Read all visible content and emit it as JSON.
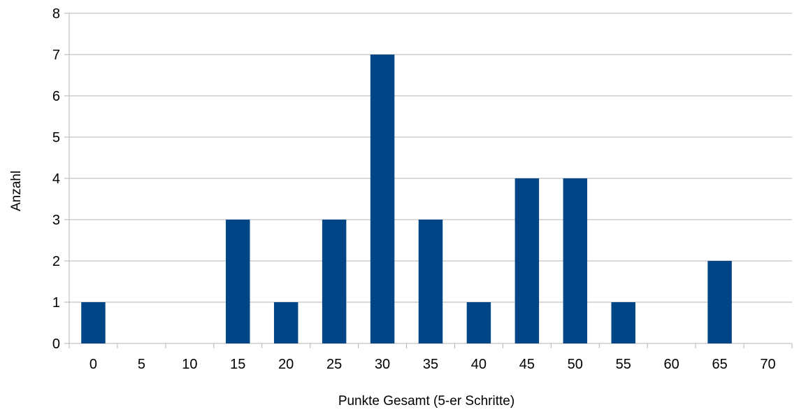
{
  "chart_data": {
    "type": "bar",
    "title": "",
    "xlabel": "Punkte Gesamt (5-er Schritte)",
    "ylabel": "Anzahl",
    "categories": [
      "0",
      "5",
      "10",
      "15",
      "20",
      "25",
      "30",
      "35",
      "40",
      "45",
      "50",
      "55",
      "60",
      "65",
      "70"
    ],
    "values": [
      1,
      0,
      0,
      3,
      1,
      3,
      7,
      3,
      1,
      4,
      4,
      1,
      0,
      2,
      0
    ],
    "ylim": [
      0,
      8
    ],
    "yticks": [
      "0",
      "1",
      "2",
      "3",
      "4",
      "5",
      "6",
      "7",
      "8"
    ],
    "grid": true,
    "legend": "none",
    "bar_color": "#004586",
    "grid_color": "#b3b3b3"
  }
}
